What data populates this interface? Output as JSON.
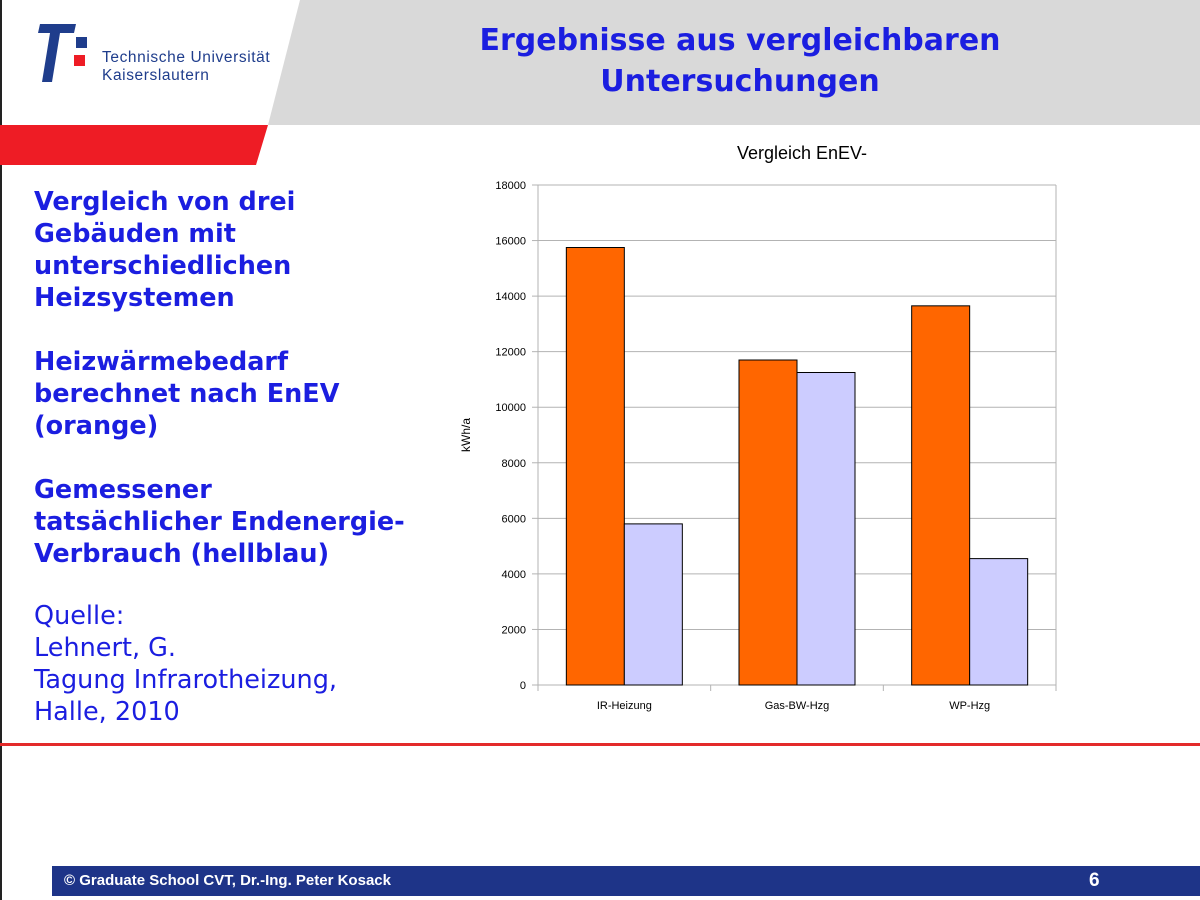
{
  "header": {
    "logo_line1": "Technische Universität",
    "logo_line2": "Kaiserslautern",
    "title_line1": "Ergebnisse aus vergleichbaren",
    "title_line2": "Untersuchungen"
  },
  "description": {
    "block1": "Vergleich von drei\nGebäuden mit\nunterschiedlichen\nHeizsystemen",
    "block2": "Heizwärmebedarf\nberechnet nach EnEV\n(orange)",
    "block3": "Gemessener\ntatsächlicher Endenergie-\nVerbrauch (hellblau)",
    "source": "Quelle:\nLehnert, G.\nTagung Infrarotheizung,\nHalle, 2010"
  },
  "colors": {
    "accent_blue": "#1b1ee0",
    "enev_orange": "#ff6600",
    "measured_blue": "#ccccff",
    "red": "#ee1c25",
    "footer_blue": "#1e3488"
  },
  "chart_data": {
    "type": "bar",
    "title": "Vergleich EnEV-",
    "xlabel": "",
    "ylabel": "kWh/a",
    "ylim": [
      0,
      18000
    ],
    "yticks": [
      0,
      2000,
      4000,
      6000,
      8000,
      10000,
      12000,
      14000,
      16000,
      18000
    ],
    "grid": true,
    "categories": [
      "IR-Heizung",
      "Gas-BW-Hzg",
      "WP-Hzg"
    ],
    "series": [
      {
        "values": [
          15750,
          11700,
          13650
        ],
        "color": "#ff6600"
      },
      {
        "values": [
          5800,
          11250,
          4550
        ],
        "color": "#ccccff"
      }
    ]
  },
  "footer": {
    "text": "© Graduate School CVT, Dr.-Ing. Peter Kosack",
    "page": "6"
  }
}
